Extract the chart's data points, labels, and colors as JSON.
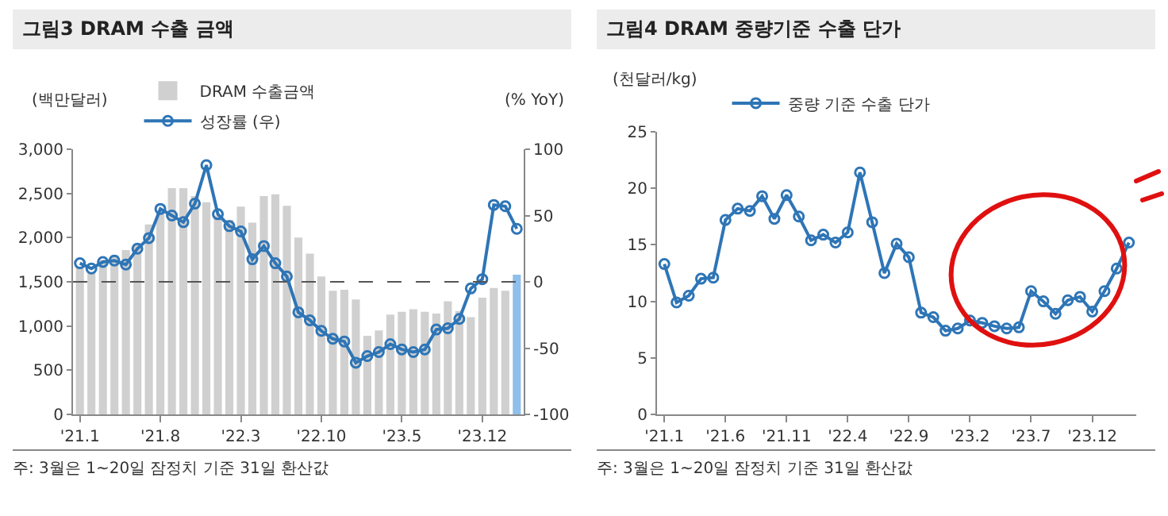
{
  "chart_data": [
    {
      "type": "bar",
      "title": "그림3 DRAM 수출 금액",
      "ylabel": "(백만달러)",
      "y2label": "(% YoY)",
      "categories": [
        "'21.1",
        null,
        null,
        null,
        null,
        null,
        null,
        "'21.8",
        null,
        null,
        null,
        null,
        null,
        null,
        "'22.3",
        null,
        null,
        null,
        null,
        null,
        null,
        "'22.10",
        null,
        null,
        null,
        null,
        null,
        null,
        "'23.5",
        null,
        null,
        null,
        null,
        null,
        null,
        "'23.12",
        null,
        null,
        null
      ],
      "series": [
        {
          "name": "DRAM 수출금액",
          "color": "#d0d0d0",
          "colors": [
            null,
            null,
            null,
            null,
            null,
            null,
            null,
            null,
            null,
            null,
            null,
            null,
            null,
            null,
            null,
            null,
            null,
            null,
            null,
            null,
            null,
            null,
            null,
            null,
            null,
            null,
            null,
            null,
            null,
            null,
            null,
            null,
            null,
            null,
            null,
            null,
            null,
            null,
            "#8fbfea"
          ],
          "values": [
            1650,
            1600,
            1750,
            1800,
            1860,
            1930,
            2150,
            2280,
            2560,
            2560,
            2470,
            2400,
            2250,
            2200,
            2350,
            2170,
            2470,
            2490,
            2360,
            2000,
            1820,
            1560,
            1400,
            1410,
            1300,
            890,
            950,
            1130,
            1160,
            1190,
            1160,
            1140,
            1280,
            1170,
            1100,
            1320,
            1430,
            1400,
            1580
          ]
        },
        {
          "name": "성장률 (우)",
          "type": "line",
          "axis": "y2",
          "color": "#2e75b6",
          "values": [
            14,
            10,
            15,
            16,
            13,
            25,
            33,
            55,
            50,
            45,
            59,
            88,
            51,
            42,
            38,
            17,
            27,
            14,
            4,
            -23,
            -29,
            -37,
            -43,
            -45,
            -61,
            -56,
            -53,
            -47,
            -51,
            -53,
            -51,
            -36,
            -35,
            -28,
            -5,
            2,
            58,
            57,
            40
          ]
        }
      ],
      "ylim": [
        0,
        3000
      ],
      "yticks": [
        0,
        {
          "value": 500,
          "label": "500"
        },
        {
          "value": 1000,
          "label": "1,000"
        },
        {
          "value": 1500,
          "label": "1,500"
        },
        {
          "value": 2000,
          "label": "2,000"
        },
        {
          "value": 2500,
          "label": "2,500"
        },
        {
          "value": 3000,
          "label": "3,000"
        }
      ],
      "y2lim": [
        -100,
        100
      ],
      "y2ticks": [
        -100,
        -50,
        0,
        50,
        100
      ],
      "ref_lines": [
        {
          "axis": "y2",
          "value": 0,
          "line_style": "dashed",
          "color": "#555555"
        }
      ],
      "marker": "circle",
      "line_style": "solid",
      "grid": false,
      "legend": "top left",
      "annotations": [
        "주: 3월은 1~20일 잠정치 기준 31일 환산값"
      ]
    },
    {
      "type": "line",
      "title": "그림4 DRAM 중량기준 수출 단가",
      "ylabel": "(천달러/kg)",
      "categories": [
        "'21.1",
        null,
        null,
        null,
        null,
        "'21.6",
        null,
        null,
        null,
        null,
        "'21.11",
        null,
        null,
        null,
        null,
        "'22.4",
        null,
        null,
        null,
        null,
        "'22.9",
        null,
        null,
        null,
        null,
        "'23.2",
        null,
        null,
        null,
        null,
        "'23.7",
        null,
        null,
        null,
        null,
        "'23.12",
        null,
        null,
        null
      ],
      "series": [
        {
          "name": "중량 기준 수출 단가",
          "color": "#2e75b6",
          "values": [
            13.3,
            9.9,
            10.5,
            12.0,
            12.1,
            17.2,
            18.2,
            18.0,
            19.3,
            17.3,
            19.4,
            17.5,
            15.4,
            15.9,
            15.2,
            16.1,
            21.4,
            17.0,
            12.5,
            15.1,
            13.9,
            9.0,
            8.6,
            7.4,
            7.6,
            8.3,
            8.1,
            7.8,
            7.6,
            7.7,
            10.9,
            10.0,
            8.9,
            10.1,
            10.4,
            9.1,
            10.9,
            12.9,
            15.2
          ]
        }
      ],
      "ylim": [
        0,
        25
      ],
      "yticks": [
        0,
        5,
        10,
        15,
        20,
        25
      ],
      "marker": "circle",
      "line_style": "solid",
      "grid": false,
      "legend": "top left",
      "annotations": [
        "주: 3월은 1~20일 잠정치 기준 31일 환산값"
      ]
    }
  ]
}
